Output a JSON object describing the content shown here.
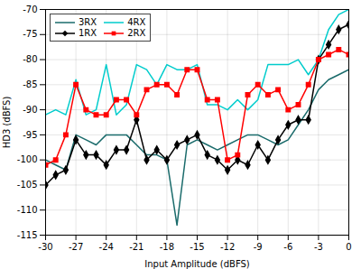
{
  "chart_data": {
    "type": "line",
    "xlabel": "Input Amplitude (dBFS)",
    "ylabel": "HD3 (dBFS)",
    "xlim": [
      -30,
      0
    ],
    "ylim": [
      -115,
      -70
    ],
    "xticks": [
      -30,
      -27,
      -24,
      -21,
      -18,
      -15,
      -12,
      -9,
      -6,
      -3,
      0
    ],
    "yticks": [
      -115,
      -110,
      -105,
      -100,
      -95,
      -90,
      -85,
      -80,
      -75,
      -70
    ],
    "grid": true,
    "legend": "upper left",
    "x": [
      -30,
      -29,
      -28,
      -27,
      -26,
      -25,
      -24,
      -23,
      -22,
      -21,
      -20,
      -19,
      -18,
      -17,
      -16,
      -15,
      -14,
      -13,
      -12,
      -11,
      -10,
      -9,
      -8,
      -7,
      -6,
      -5,
      -4,
      -3,
      -2,
      -1,
      0
    ],
    "series": [
      {
        "name": "3RX",
        "color": "#1a6b6b",
        "values": [
          -100,
          -101,
          -102,
          -95,
          -96,
          -97,
          -95,
          -95,
          -95,
          -97,
          -99,
          -99,
          -100,
          -113,
          -97,
          -96,
          -97,
          -98,
          -97,
          -96,
          -95,
          -95,
          -96,
          -97,
          -96,
          -93,
          -90,
          -86,
          -84,
          -83,
          -82
        ]
      },
      {
        "name": "4RX",
        "color": "#00cccc",
        "values": [
          -91,
          -90,
          -91,
          -84,
          -91,
          -90,
          -81,
          -91,
          -89,
          -81,
          -82,
          -85,
          -81,
          -82,
          -82,
          -81,
          -89,
          -89,
          -90,
          -88,
          -90,
          -88,
          -81,
          -81,
          -81,
          -80,
          -83,
          -80,
          -74,
          -71,
          -70
        ]
      },
      {
        "name": "1RX",
        "color": "#000000",
        "marker": "diamond",
        "values": [
          -105,
          -103,
          -102,
          -96,
          -99,
          -99,
          -101,
          -98,
          -98,
          -92,
          -100,
          -98,
          -100,
          -97,
          -96,
          -95,
          -99,
          -100,
          -102,
          -100,
          -101,
          -97,
          -100,
          -96,
          -93,
          -92,
          -92,
          -80,
          -77,
          -74,
          -73
        ]
      },
      {
        "name": "2RX",
        "color": "#ff0000",
        "marker": "square",
        "values": [
          -101,
          -100,
          -95,
          -85,
          -90,
          -91,
          -91,
          -88,
          -88,
          -91,
          -86,
          -85,
          -85,
          -87,
          -82,
          -82,
          -88,
          -88,
          -100,
          -99,
          -87,
          -85,
          -87,
          -86,
          -90,
          -89,
          -85,
          -80,
          -79,
          -78,
          -79
        ]
      }
    ]
  }
}
